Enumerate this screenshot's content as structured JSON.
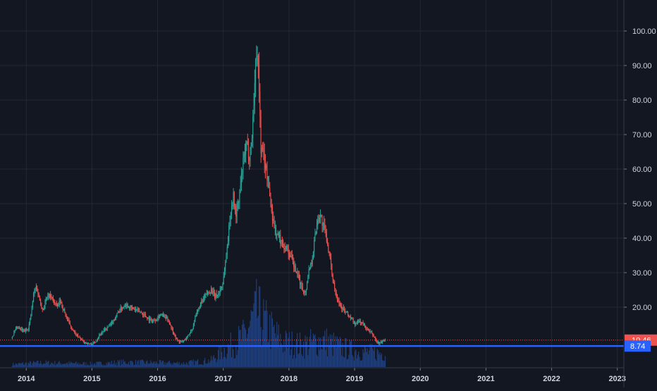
{
  "colors": {
    "background": "#131722",
    "grid": "#242733",
    "up": "#26a69a",
    "down": "#ef5350",
    "volume": "#1e3f7f",
    "axis_text": "#d1d4dc",
    "price_line": "#ef5350",
    "support_line": "#2962ff"
  },
  "chart_data": {
    "type": "candlestick",
    "title": "",
    "x_ticks": [
      "2014",
      "2015",
      "2016",
      "2017",
      "2018",
      "2019",
      "2020",
      "2021",
      "2022",
      "2023"
    ],
    "x_range": [
      2013.6,
      2023.1
    ],
    "y_ticks": [
      "100.00",
      "90.00",
      "80.00",
      "70.00",
      "60.00",
      "50.00",
      "40.00",
      "30.00",
      "20.00"
    ],
    "y_range": [
      6.0,
      112.0
    ],
    "last_price_label": "10.46",
    "last_price": 10.46,
    "support_label": "8.74",
    "support_level": 8.74,
    "grid": true,
    "price_path": [
      [
        2013.78,
        11
      ],
      [
        2013.82,
        12.5
      ],
      [
        2013.86,
        14
      ],
      [
        2013.92,
        13.5
      ],
      [
        2013.98,
        13
      ],
      [
        2014.04,
        14
      ],
      [
        2014.08,
        18
      ],
      [
        2014.12,
        24
      ],
      [
        2014.16,
        26
      ],
      [
        2014.2,
        23
      ],
      [
        2014.26,
        19
      ],
      [
        2014.3,
        22
      ],
      [
        2014.36,
        23.5
      ],
      [
        2014.42,
        22
      ],
      [
        2014.48,
        20
      ],
      [
        2014.52,
        22
      ],
      [
        2014.58,
        19
      ],
      [
        2014.64,
        16
      ],
      [
        2014.7,
        14
      ],
      [
        2014.76,
        12
      ],
      [
        2014.82,
        11
      ],
      [
        2014.88,
        10
      ],
      [
        2014.94,
        9.5
      ],
      [
        2015.0,
        9.2
      ],
      [
        2015.06,
        10
      ],
      [
        2015.12,
        12
      ],
      [
        2015.18,
        13
      ],
      [
        2015.24,
        14
      ],
      [
        2015.3,
        15
      ],
      [
        2015.36,
        17
      ],
      [
        2015.42,
        19
      ],
      [
        2015.48,
        20
      ],
      [
        2015.52,
        21
      ],
      [
        2015.58,
        20
      ],
      [
        2015.64,
        19.5
      ],
      [
        2015.7,
        19
      ],
      [
        2015.76,
        18.5
      ],
      [
        2015.82,
        17.5
      ],
      [
        2015.88,
        16.5
      ],
      [
        2015.94,
        16
      ],
      [
        2016.0,
        17
      ],
      [
        2016.06,
        18
      ],
      [
        2016.12,
        17
      ],
      [
        2016.18,
        16
      ],
      [
        2016.24,
        13
      ],
      [
        2016.3,
        10.5
      ],
      [
        2016.36,
        9.8
      ],
      [
        2016.42,
        10.5
      ],
      [
        2016.48,
        12
      ],
      [
        2016.54,
        14
      ],
      [
        2016.58,
        17
      ],
      [
        2016.64,
        20
      ],
      [
        2016.7,
        22
      ],
      [
        2016.76,
        24
      ],
      [
        2016.82,
        25
      ],
      [
        2016.88,
        23
      ],
      [
        2016.94,
        24
      ],
      [
        2017.0,
        27
      ],
      [
        2017.04,
        33
      ],
      [
        2017.08,
        40
      ],
      [
        2017.12,
        48
      ],
      [
        2017.16,
        52
      ],
      [
        2017.2,
        47
      ],
      [
        2017.24,
        50
      ],
      [
        2017.28,
        57
      ],
      [
        2017.32,
        63
      ],
      [
        2017.36,
        67
      ],
      [
        2017.4,
        64
      ],
      [
        2017.44,
        68
      ],
      [
        2017.48,
        83
      ],
      [
        2017.52,
        97
      ],
      [
        2017.55,
        85
      ],
      [
        2017.58,
        66
      ],
      [
        2017.62,
        64
      ],
      [
        2017.66,
        60
      ],
      [
        2017.7,
        55
      ],
      [
        2017.74,
        48
      ],
      [
        2017.8,
        42
      ],
      [
        2017.86,
        40
      ],
      [
        2017.92,
        38
      ],
      [
        2017.98,
        37
      ],
      [
        2018.04,
        34
      ],
      [
        2018.1,
        31
      ],
      [
        2018.16,
        28
      ],
      [
        2018.22,
        25
      ],
      [
        2018.26,
        24
      ],
      [
        2018.3,
        30
      ],
      [
        2018.36,
        34
      ],
      [
        2018.4,
        40
      ],
      [
        2018.44,
        45
      ],
      [
        2018.48,
        47
      ],
      [
        2018.52,
        44
      ],
      [
        2018.56,
        42
      ],
      [
        2018.6,
        38
      ],
      [
        2018.66,
        30
      ],
      [
        2018.72,
        24
      ],
      [
        2018.78,
        21
      ],
      [
        2018.84,
        19
      ],
      [
        2018.9,
        18
      ],
      [
        2018.96,
        16.5
      ],
      [
        2019.02,
        15
      ],
      [
        2019.08,
        16
      ],
      [
        2019.14,
        15
      ],
      [
        2019.2,
        13.5
      ],
      [
        2019.26,
        12.5
      ],
      [
        2019.3,
        11.5
      ],
      [
        2019.34,
        10
      ],
      [
        2019.38,
        9.6
      ],
      [
        2019.42,
        10
      ],
      [
        2019.46,
        10.46
      ]
    ],
    "volume_path": [
      [
        2013.78,
        0.05
      ],
      [
        2014.2,
        0.08
      ],
      [
        2014.6,
        0.07
      ],
      [
        2015.0,
        0.06
      ],
      [
        2015.5,
        0.09
      ],
      [
        2016.0,
        0.08
      ],
      [
        2016.4,
        0.07
      ],
      [
        2016.8,
        0.12
      ],
      [
        2017.0,
        0.3
      ],
      [
        2017.3,
        0.55
      ],
      [
        2017.5,
        1.0
      ],
      [
        2017.7,
        0.7
      ],
      [
        2017.9,
        0.45
      ],
      [
        2018.2,
        0.4
      ],
      [
        2018.5,
        0.5
      ],
      [
        2018.8,
        0.35
      ],
      [
        2019.1,
        0.28
      ],
      [
        2019.46,
        0.25
      ]
    ]
  }
}
